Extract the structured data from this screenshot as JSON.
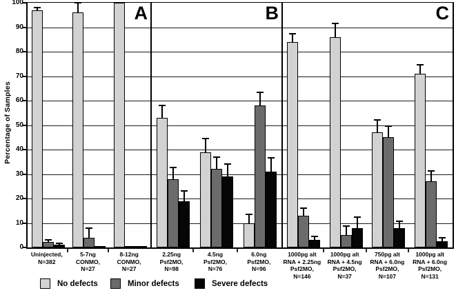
{
  "chart_data": {
    "type": "bar",
    "title": "",
    "xlabel": "",
    "ylabel": "Percentage of Samples",
    "ylim": [
      0,
      100
    ],
    "ytick_interval": 10,
    "grid": true,
    "legend_position": "bottom",
    "series": [
      {
        "name": "No defects",
        "color": "#d2d2d2"
      },
      {
        "name": "Minor defects",
        "color": "#6b6b6b"
      },
      {
        "name": "Severe defects",
        "color": "#060606"
      }
    ],
    "panels": [
      {
        "label": "A",
        "groups": [
          {
            "category": "Uninjected, N=382",
            "lines": [
              "Uninjected,",
              "N=382"
            ],
            "values": [
              97,
              2.2,
              1.2
            ],
            "errors": [
              1,
              1,
              0.6
            ]
          },
          {
            "category": "5-7ng CONMO, N=27",
            "lines": [
              "5-7ng",
              "CONMO,",
              "N=27"
            ],
            "values": [
              96,
              4,
              0.4
            ],
            "errors": [
              4,
              4,
              0
            ]
          },
          {
            "category": "8-12ng CONMO, N=27",
            "lines": [
              "8-12ng",
              "CONMO,",
              "N=27"
            ],
            "values": [
              100,
              0.4,
              0.4
            ],
            "errors": [
              0,
              0,
              0
            ]
          }
        ]
      },
      {
        "label": "B",
        "groups": [
          {
            "category": "2.25ng Psf2MO, N=98",
            "lines": [
              "2.25ng",
              "Psf2MO,",
              "N=98"
            ],
            "values": [
              53,
              28,
              19
            ],
            "errors": [
              5,
              4.7,
              4
            ]
          },
          {
            "category": "4.5ng Psf2MO, N=76",
            "lines": [
              "4.5ng",
              "Psf2MO,",
              "N=76"
            ],
            "values": [
              39,
              32,
              29
            ],
            "errors": [
              5.5,
              5,
              5
            ]
          },
          {
            "category": "6.0ng Psf2MO, N=96",
            "lines": [
              "6.0ng",
              "Psf2MO,",
              "N=96"
            ],
            "values": [
              10,
              58,
              31
            ],
            "errors": [
              3.5,
              5.5,
              5.5
            ]
          }
        ]
      },
      {
        "label": "C",
        "groups": [
          {
            "category": "1000pg alt RNA + 2.25ng Psf2MO, N=146",
            "lines": [
              "1000pg alt",
              "RNA + 2.25ng",
              "Psf2MO,",
              "N=146"
            ],
            "values": [
              84,
              13,
              3
            ],
            "errors": [
              3.3,
              3,
              1.4
            ]
          },
          {
            "category": "1000pg alt RNA + 4.5ng Psf2MO, N=37",
            "lines": [
              "1000pg alt",
              "RNA + 4.5ng",
              "Psf2MO,",
              "N=37"
            ],
            "values": [
              86,
              5,
              8
            ],
            "errors": [
              5.5,
              3.8,
              4.4
            ]
          },
          {
            "category": "750pg alt RNA + 6.0ng Psf2MO, N=107",
            "lines": [
              "750pg alt",
              "RNA + 6.0ng",
              "Psf2MO,",
              "N=107"
            ],
            "values": [
              47,
              45,
              8
            ],
            "errors": [
              5,
              4.6,
              2.7
            ]
          },
          {
            "category": "1000pg alt RNA + 6.0ng Psf2MO, N=131",
            "lines": [
              "1000pg alt",
              "RNA + 6.0ng",
              "Psf2MO,",
              "N=131"
            ],
            "values": [
              71,
              27,
              2.5
            ],
            "errors": [
              3.6,
              4.3,
              1.4
            ]
          }
        ]
      }
    ]
  }
}
